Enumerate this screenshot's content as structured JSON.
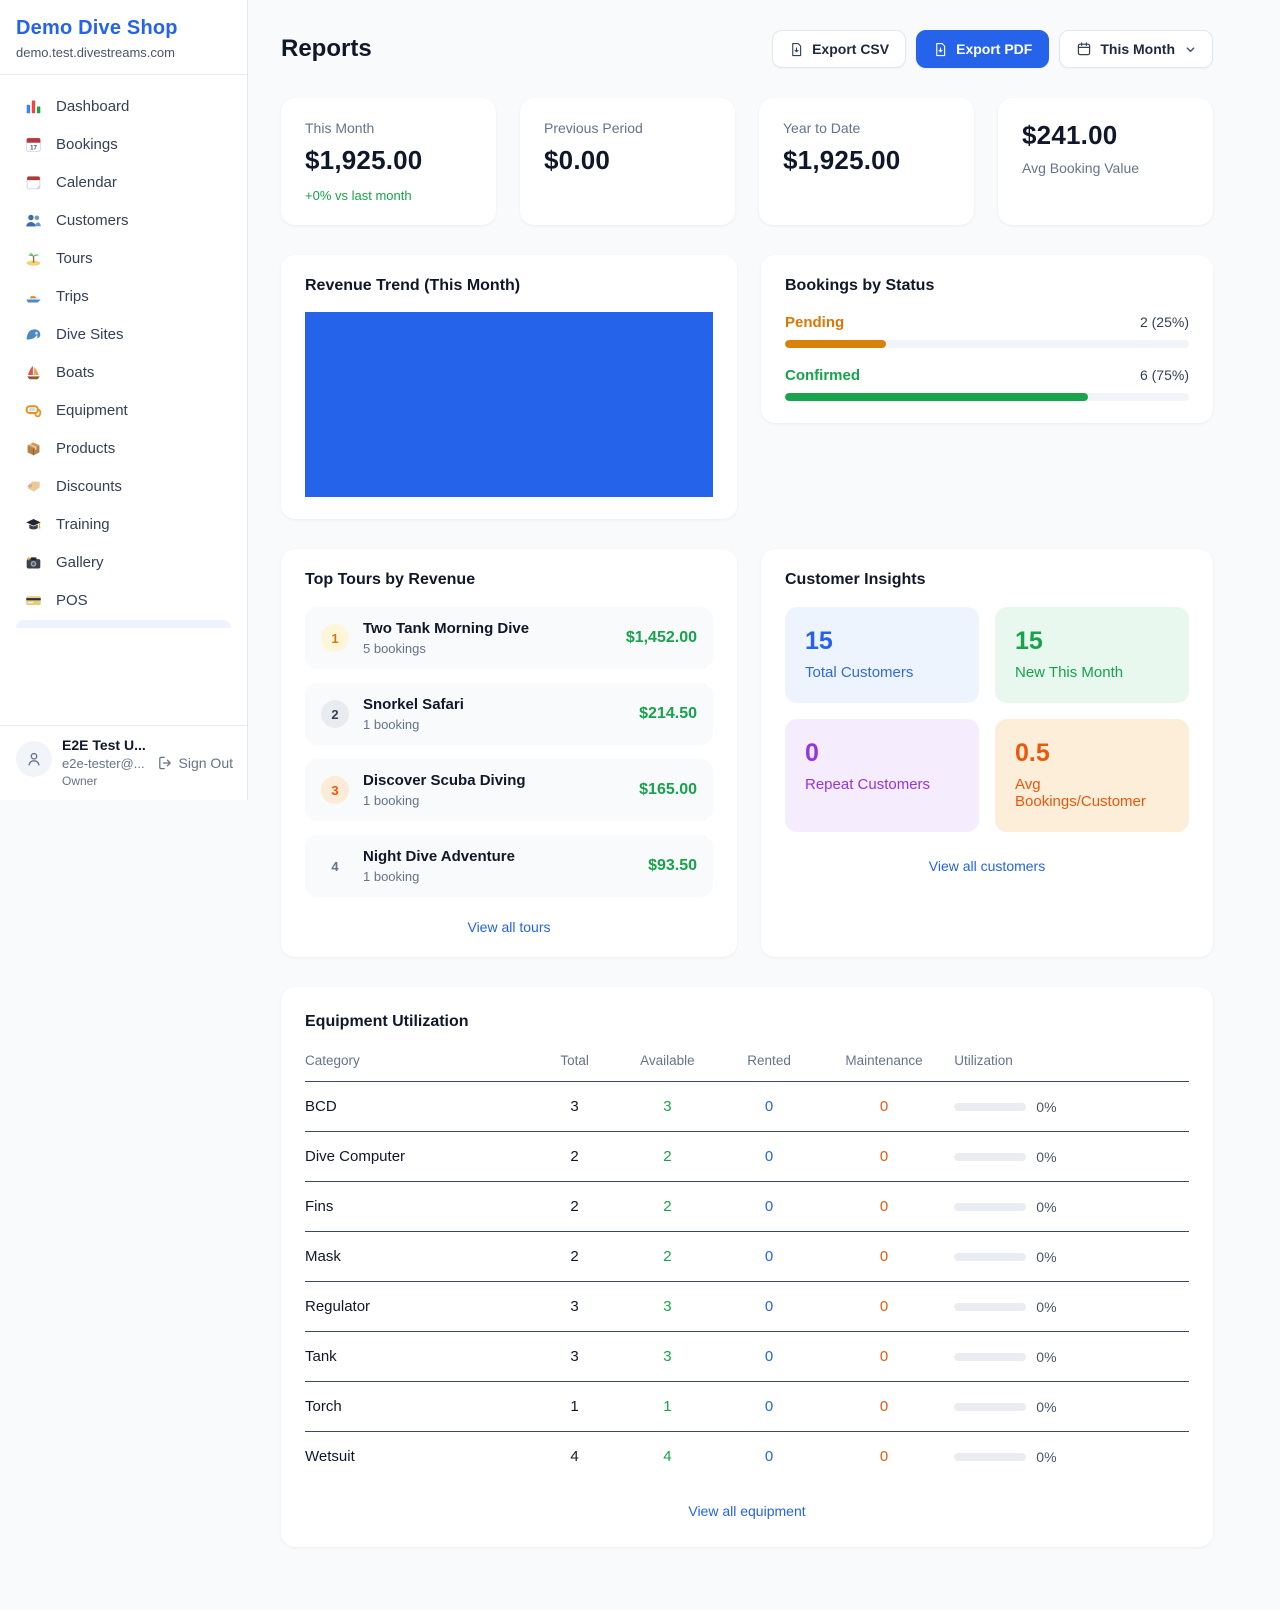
{
  "chart_data": {
    "type": "bar",
    "title": "Revenue Trend (This Month)",
    "categories": [
      "This Month"
    ],
    "values": [
      1925
    ],
    "bar_color": "#2563eb",
    "xlabel": "",
    "ylabel": "",
    "note": "single bar filling entire plot area, no axes or gridlines visible"
  },
  "sidebar": {
    "brand": {
      "name": "Demo Dive Shop",
      "domain": "demo.test.divestreams.com"
    },
    "nav": [
      {
        "icon": "dashboard",
        "label": "Dashboard"
      },
      {
        "icon": "bookings-calendar",
        "label": "Bookings"
      },
      {
        "icon": "calendar",
        "label": "Calendar"
      },
      {
        "icon": "customers",
        "label": "Customers"
      },
      {
        "icon": "tours-island",
        "label": "Tours"
      },
      {
        "icon": "trips-boat",
        "label": "Trips"
      },
      {
        "icon": "dive-sites-wave",
        "label": "Dive Sites"
      },
      {
        "icon": "boats-sailboat",
        "label": "Boats"
      },
      {
        "icon": "equipment-mask",
        "label": "Equipment"
      },
      {
        "icon": "products-box",
        "label": "Products"
      },
      {
        "icon": "discounts-tag",
        "label": "Discounts"
      },
      {
        "icon": "training-cap",
        "label": "Training"
      },
      {
        "icon": "gallery-camera",
        "label": "Gallery"
      },
      {
        "icon": "pos-card",
        "label": "POS"
      }
    ],
    "user": {
      "name": "E2E Test U...",
      "email": "e2e-tester@...",
      "role": "Owner",
      "sign_out": "Sign Out"
    }
  },
  "header": {
    "title": "Reports",
    "export_csv": "Export CSV",
    "export_pdf": "Export PDF",
    "period": "This Month"
  },
  "stats": [
    {
      "label": "This Month",
      "value": "$1,925.00",
      "delta": "+0% vs last month"
    },
    {
      "label": "Previous Period",
      "value": "$0.00"
    },
    {
      "label": "Year to Date",
      "value": "$1,925.00"
    },
    {
      "label": "Avg Booking Value",
      "value": "$241.00"
    }
  ],
  "revenue_trend": {
    "title": "Revenue Trend (This Month)"
  },
  "bookings_status": {
    "title": "Bookings by Status",
    "items": [
      {
        "label": "Pending",
        "count": "2 (25%)",
        "pct": 25,
        "color": "#d97706"
      },
      {
        "label": "Confirmed",
        "count": "6 (75%)",
        "pct": 75,
        "color": "#16a34a"
      }
    ]
  },
  "top_tours": {
    "title": "Top Tours by Revenue",
    "items": [
      {
        "rank": "1",
        "name": "Two Tank Morning Dive",
        "bookings": "5 bookings",
        "amount": "$1,452.00"
      },
      {
        "rank": "2",
        "name": "Snorkel Safari",
        "bookings": "1 booking",
        "amount": "$214.50"
      },
      {
        "rank": "3",
        "name": "Discover Scuba Diving",
        "bookings": "1 booking",
        "amount": "$165.00"
      },
      {
        "rank": "4",
        "name": "Night Dive Adventure",
        "bookings": "1 booking",
        "amount": "$93.50"
      }
    ],
    "view_all": "View all tours"
  },
  "customer_insights": {
    "title": "Customer Insights",
    "tiles": [
      {
        "value": "15",
        "label": "Total Customers",
        "color": "#2563eb"
      },
      {
        "value": "15",
        "label": "New This Month",
        "color": "#16a34a"
      },
      {
        "value": "0",
        "label": "Repeat Customers",
        "color": "#9333ea"
      },
      {
        "value": "0.5",
        "label": "Avg Bookings/Customer",
        "color": "#ea580c"
      }
    ],
    "view_all": "View all customers"
  },
  "equipment": {
    "title": "Equipment Utilization",
    "columns": [
      "Category",
      "Total",
      "Available",
      "Rented",
      "Maintenance",
      "Utilization"
    ],
    "rows": [
      {
        "category": "BCD",
        "total": "3",
        "available": "3",
        "rented": "0",
        "maintenance": "0",
        "utilization": "0%",
        "pct": 0
      },
      {
        "category": "Dive Computer",
        "total": "2",
        "available": "2",
        "rented": "0",
        "maintenance": "0",
        "utilization": "0%",
        "pct": 0
      },
      {
        "category": "Fins",
        "total": "2",
        "available": "2",
        "rented": "0",
        "maintenance": "0",
        "utilization": "0%",
        "pct": 0
      },
      {
        "category": "Mask",
        "total": "2",
        "available": "2",
        "rented": "0",
        "maintenance": "0",
        "utilization": "0%",
        "pct": 0
      },
      {
        "category": "Regulator",
        "total": "3",
        "available": "3",
        "rented": "0",
        "maintenance": "0",
        "utilization": "0%",
        "pct": 0
      },
      {
        "category": "Tank",
        "total": "3",
        "available": "3",
        "rented": "0",
        "maintenance": "0",
        "utilization": "0%",
        "pct": 0
      },
      {
        "category": "Torch",
        "total": "1",
        "available": "1",
        "rented": "0",
        "maintenance": "0",
        "utilization": "0%",
        "pct": 0
      },
      {
        "category": "Wetsuit",
        "total": "4",
        "available": "4",
        "rented": "0",
        "maintenance": "0",
        "utilization": "0%",
        "pct": 0
      }
    ],
    "view_all": "View all equipment"
  }
}
